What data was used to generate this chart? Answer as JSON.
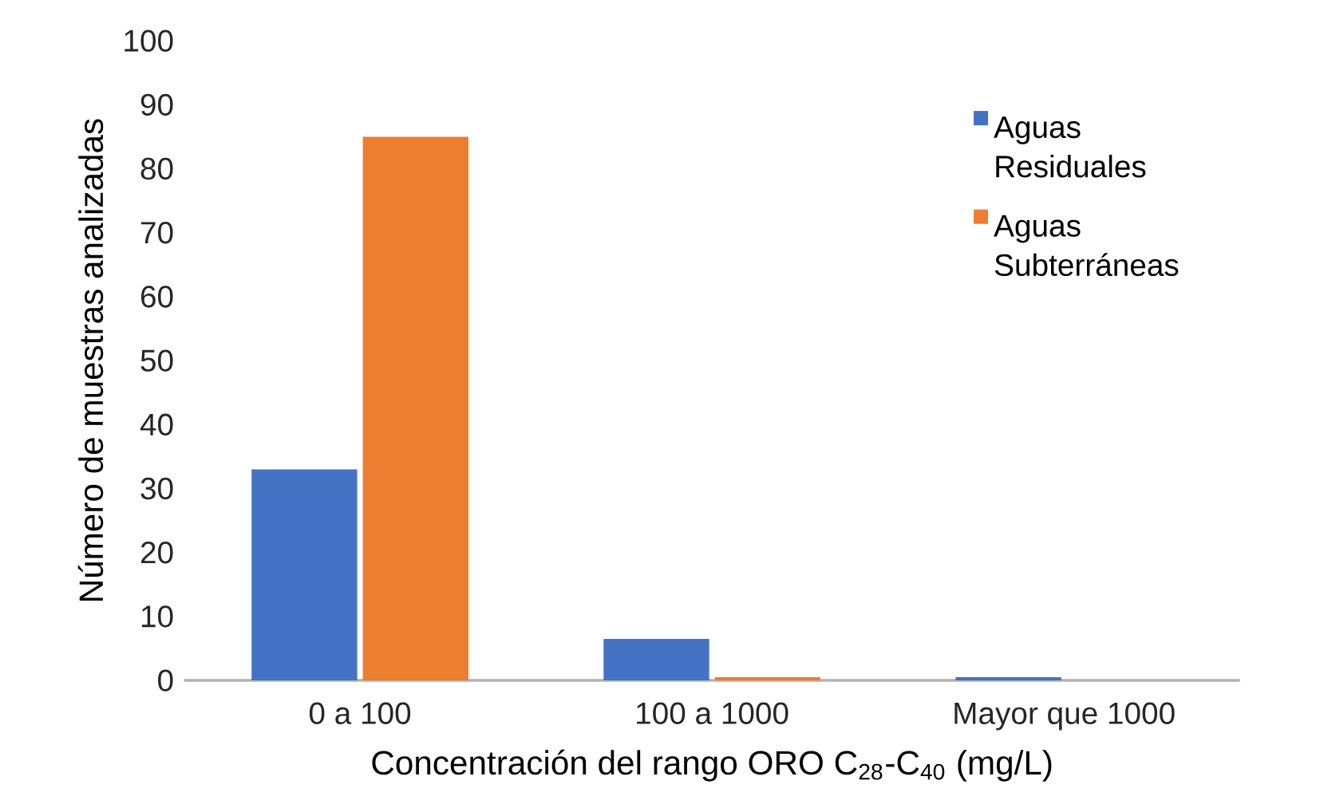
{
  "chart_data": {
    "type": "bar",
    "categories": [
      "0 a 100",
      "100 a 1000",
      "Mayor que 1000"
    ],
    "series": [
      {
        "name": "Aguas Residuales",
        "color": "#4472c4",
        "values": [
          33,
          6.5,
          0.5
        ]
      },
      {
        "name": "Aguas Subterráneas",
        "color": "#ed7d31",
        "values": [
          85,
          0.5,
          0
        ]
      }
    ],
    "xlabel": "Concentración del rango ORO C$_{28}$-C$_{40}$ (mg/L)",
    "ylabel": "Número de muestras analizadas",
    "ylim": [
      0,
      100
    ],
    "yticks": [
      0,
      10,
      20,
      30,
      40,
      50,
      60,
      70,
      80,
      90,
      100
    ],
    "grid": false,
    "legend": "top right"
  }
}
